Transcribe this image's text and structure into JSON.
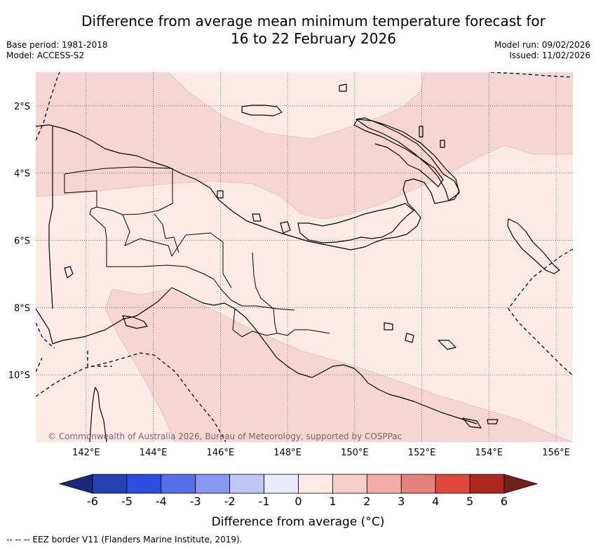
{
  "title": {
    "line1": "Difference from average mean minimum temperature forecast for",
    "line2": "16 to 22 February 2026"
  },
  "meta": {
    "base_period": "Base period: 1981-2018",
    "model": "Model: ACCESS-S2",
    "model_run": "Model run: 09/02/2026",
    "issued": "Issued: 11/02/2026"
  },
  "map": {
    "lon_range": [
      140.5,
      156.5
    ],
    "lat_range": [
      -12.0,
      -1.0
    ],
    "lon_ticks": [
      {
        "value": 142,
        "label": "142°E"
      },
      {
        "value": 144,
        "label": "144°E"
      },
      {
        "value": 146,
        "label": "146°E"
      },
      {
        "value": 148,
        "label": "148°E"
      },
      {
        "value": 150,
        "label": "150°E"
      },
      {
        "value": 152,
        "label": "152°E"
      },
      {
        "value": 154,
        "label": "154°E"
      },
      {
        "value": 156,
        "label": "156°E"
      }
    ],
    "lat_ticks": [
      {
        "value": -2,
        "label": "2°S"
      },
      {
        "value": -4,
        "label": "4°S"
      },
      {
        "value": -6,
        "label": "6°S"
      },
      {
        "value": -8,
        "label": "8°S"
      },
      {
        "value": -10,
        "label": "10°S"
      }
    ],
    "gridlines": true,
    "copyright": "© Commonwealth of Australia 2026, Bureau of Meteorology, supported by COSPPac",
    "field_colors": {
      "zero_to_one": "#fceae7",
      "one_to_two": "#f5d6d2"
    }
  },
  "colorbar": {
    "ticks": [
      "-6",
      "-5",
      "-4",
      "-3",
      "-2",
      "-1",
      "0",
      "1",
      "2",
      "3",
      "4",
      "5",
      "6"
    ],
    "under_color": "#1a2a7a",
    "over_color": "#731f1c",
    "bin_colors": [
      "#2540b0",
      "#2d4ee0",
      "#5770e8",
      "#8796ee",
      "#c0c6f4",
      "#e8ebfa",
      "#fceae7",
      "#f5d0cb",
      "#f0aca5",
      "#e6807a",
      "#dc4a3e",
      "#ae2620"
    ],
    "label": "Difference from average (",
    "unit": "°C",
    "label_close": ")"
  },
  "footnote": "--  --  -- EEZ border V11 (Flanders Marine Institute, 2019)."
}
